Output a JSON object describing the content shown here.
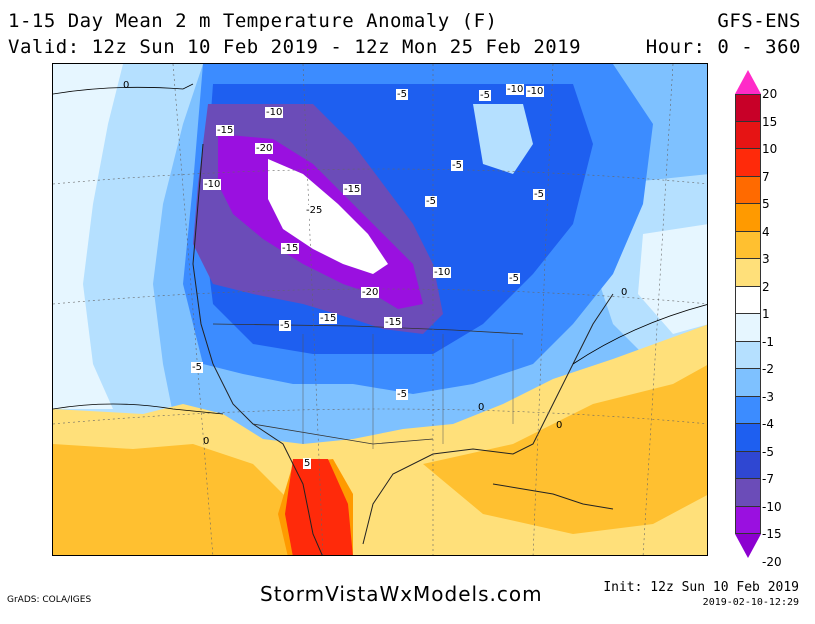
{
  "header": {
    "title": "1-15 Day Mean 2 m Temperature Anomaly (F)",
    "valid": "Valid: 12z Sun 10 Feb 2019 - 12z Mon 25 Feb 2019",
    "model": "GFS-ENS",
    "hour": "Hour: 0 - 360"
  },
  "map": {
    "region": "North America",
    "contour_labels": [
      "0",
      "-10",
      "-15",
      "-20",
      "-10",
      "-15",
      "-25",
      "-15",
      "-20",
      "-15",
      "-15",
      "-10",
      "-5",
      "-10",
      "-5",
      "-5",
      "-10",
      "-5",
      "-5",
      "-5",
      "-5",
      "-5",
      "-5",
      "-5",
      "0",
      "0",
      "5",
      "0"
    ],
    "zero_marks": [
      "0",
      "0",
      "0",
      "0"
    ]
  },
  "colorbar": {
    "values": [
      "20",
      "15",
      "10",
      "7",
      "5",
      "4",
      "3",
      "2",
      "1",
      "-1",
      "-2",
      "-3",
      "-4",
      "-5",
      "-7",
      "-10",
      "-15",
      "-20"
    ],
    "colors": [
      "#ff2bc8",
      "#c80028",
      "#e61414",
      "#ff2a0a",
      "#ff6a00",
      "#ff9a00",
      "#ffc030",
      "#ffe07a",
      "#ffffff",
      "#e6f6ff",
      "#b5e0ff",
      "#7ec1ff",
      "#3c8cff",
      "#1e5ff0",
      "#2f47d2",
      "#6b4cb8",
      "#9a10e0",
      "#8c00d0"
    ]
  },
  "footer": {
    "credit": "GrADS: COLA/IGES",
    "site": "StormVistaWxModels.com",
    "init": "Init: 12z Sun 10 Feb 2019",
    "stamp": "2019-02-10-12:29"
  }
}
